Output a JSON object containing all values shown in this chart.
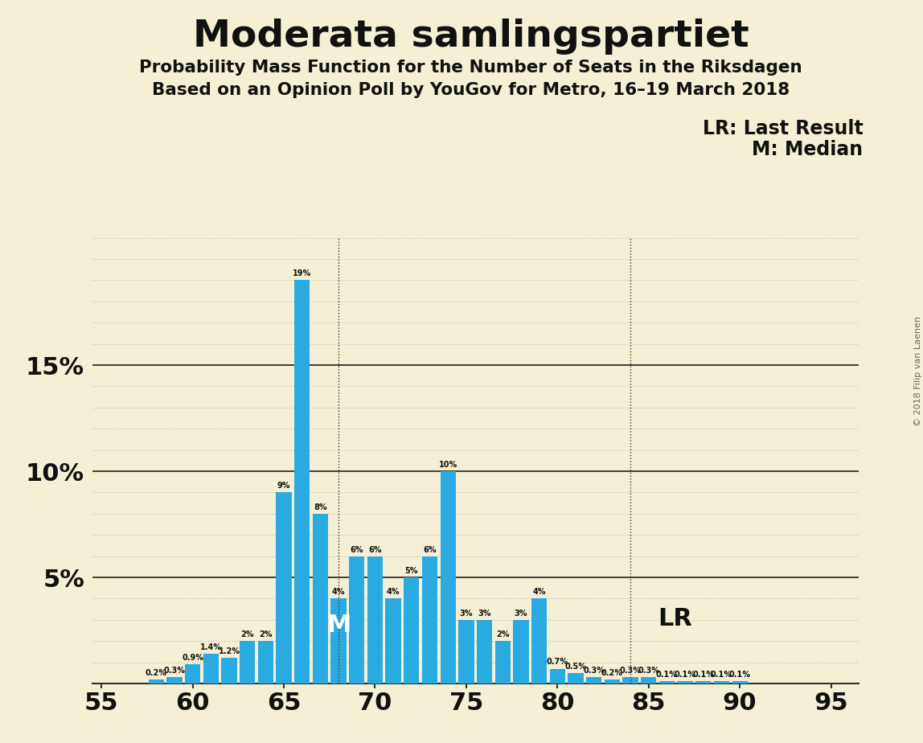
{
  "title": "Moderata samlingspartiet",
  "subtitle1": "Probability Mass Function for the Number of Seats in the Riksdagen",
  "subtitle2": "Based on an Opinion Poll by YouGov for Metro, 16–19 March 2018",
  "copyright": "© 2018 Filip van Laenen",
  "background_color": "#f5f0d5",
  "bar_color": "#29abe2",
  "seats": [
    55,
    56,
    57,
    58,
    59,
    60,
    61,
    62,
    63,
    64,
    65,
    66,
    67,
    68,
    69,
    70,
    71,
    72,
    73,
    74,
    75,
    76,
    77,
    78,
    79,
    80,
    81,
    82,
    83,
    84,
    85,
    86,
    87,
    88,
    89,
    90,
    91,
    92,
    93,
    94,
    95
  ],
  "probs": [
    0.0,
    0.0,
    0.0,
    0.2,
    0.3,
    0.9,
    1.4,
    1.2,
    2.0,
    2.0,
    9.0,
    19.0,
    8.0,
    4.0,
    6.0,
    6.0,
    4.0,
    5.0,
    6.0,
    10.0,
    3.0,
    3.0,
    2.0,
    3.0,
    4.0,
    0.7,
    0.5,
    0.3,
    0.2,
    0.3,
    0.3,
    0.1,
    0.1,
    0.1,
    0.1,
    0.1,
    0.0,
    0.0,
    0.0,
    0.0,
    0.0
  ],
  "prob_labels": [
    "0%",
    "0%",
    "0%",
    "0.2%",
    "0.3%",
    "0.9%",
    "1.4%",
    "1.2%",
    "2%",
    "2%",
    "9%",
    "19%",
    "8%",
    "4%",
    "6%",
    "6%",
    "4%",
    "5%",
    "6%",
    "10%",
    "3%",
    "3%",
    "2%",
    "3%",
    "4%",
    "0.7%",
    "0.5%",
    "0.3%",
    "0.2%",
    "0.3%",
    "0.3%",
    "0.1%",
    "0.1%",
    "0.1%",
    "0.1%",
    "0.1%",
    "0%",
    "0%",
    "0%",
    "0%",
    "0%"
  ],
  "median_seat": 68,
  "lr_seat": 84,
  "ylim": [
    0,
    21
  ],
  "xlim": [
    54.5,
    96.5
  ],
  "xticks": [
    55,
    60,
    65,
    70,
    75,
    80,
    85,
    90,
    95
  ],
  "ytick_vals": [
    5,
    10,
    15
  ],
  "ytick_labels": [
    "5%",
    "10%",
    "15%"
  ],
  "legend_lr": "LR: Last Result",
  "legend_m": "M: Median",
  "lr_label": "LR",
  "m_label": "M"
}
